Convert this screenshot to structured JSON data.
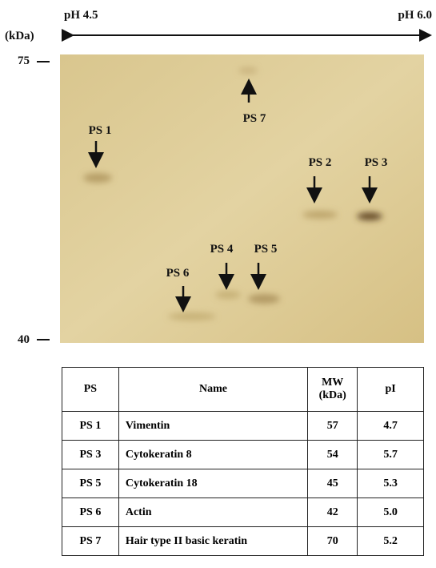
{
  "header": {
    "ph_left": "pH 4.5",
    "ph_right": "pH 6.0",
    "unit": "(kDa)"
  },
  "mw_markers": [
    "75",
    "40"
  ],
  "spots": [
    "PS 1",
    "PS 2",
    "PS 3",
    "PS 4",
    "PS 5",
    "PS 6",
    "PS 7"
  ],
  "table": {
    "columns": [
      "PS",
      "Name",
      "MW\n(kDa)",
      "pI"
    ],
    "rows": [
      [
        "PS 1",
        "Vimentin",
        "57",
        "4.7"
      ],
      [
        "PS 3",
        "Cytokeratin 8",
        "54",
        "5.7"
      ],
      [
        "PS 5",
        "Cytokeratin 18",
        "45",
        "5.3"
      ],
      [
        "PS 6",
        "Actin",
        "42",
        "5.0"
      ],
      [
        "PS 7",
        "Hair type II basic  keratin",
        "70",
        "5.2"
      ]
    ]
  }
}
